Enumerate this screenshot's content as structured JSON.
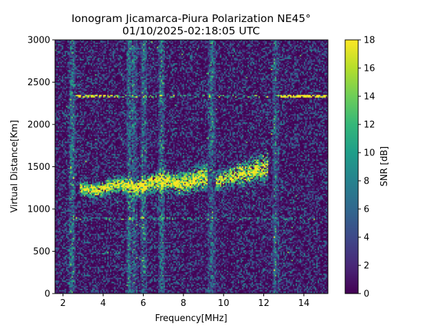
{
  "chart_data": {
    "type": "heatmap",
    "title_line1": "Ionogram Jicamarca-Piura Polarization NE45°",
    "title_line2": "01/10/2025-02:18:05 UTC",
    "xlabel": "Frequency[MHz]",
    "ylabel": "Virtual Distance[Km]",
    "colorbar_label": "SNR [dB]",
    "colormap": "viridis",
    "xlim": [
      1.6,
      15.2
    ],
    "ylim": [
      0,
      3000
    ],
    "clim": [
      0,
      18
    ],
    "x_ticks": [
      2,
      4,
      6,
      8,
      10,
      12,
      14
    ],
    "y_ticks": [
      0,
      500,
      1000,
      1500,
      2000,
      2500,
      3000
    ],
    "colorbar_ticks": [
      0,
      2,
      4,
      6,
      8,
      10,
      12,
      14,
      16,
      18
    ],
    "grid": false,
    "echo_traces": [
      {
        "name": "F-region main trace",
        "x_range": [
          2.8,
          9.2
        ],
        "distance_center": 1320,
        "snr_peak": 18
      },
      {
        "name": "F-region upper trace",
        "x_range": [
          9.6,
          12.2
        ],
        "distance_center": 1450,
        "snr_peak": 18
      },
      {
        "name": "multi-hop echo",
        "x_range": [
          2.6,
          15.2
        ],
        "distance_center": 2340,
        "snr_peak": 18
      },
      {
        "name": "ground reflection band",
        "x_range": [
          2.4,
          14.6
        ],
        "distance_center": 890,
        "snr_peak": 12
      }
    ],
    "interference_columns_mhz": [
      2.45,
      5.3,
      5.5,
      6.0,
      6.9,
      9.4,
      12.55
    ]
  }
}
